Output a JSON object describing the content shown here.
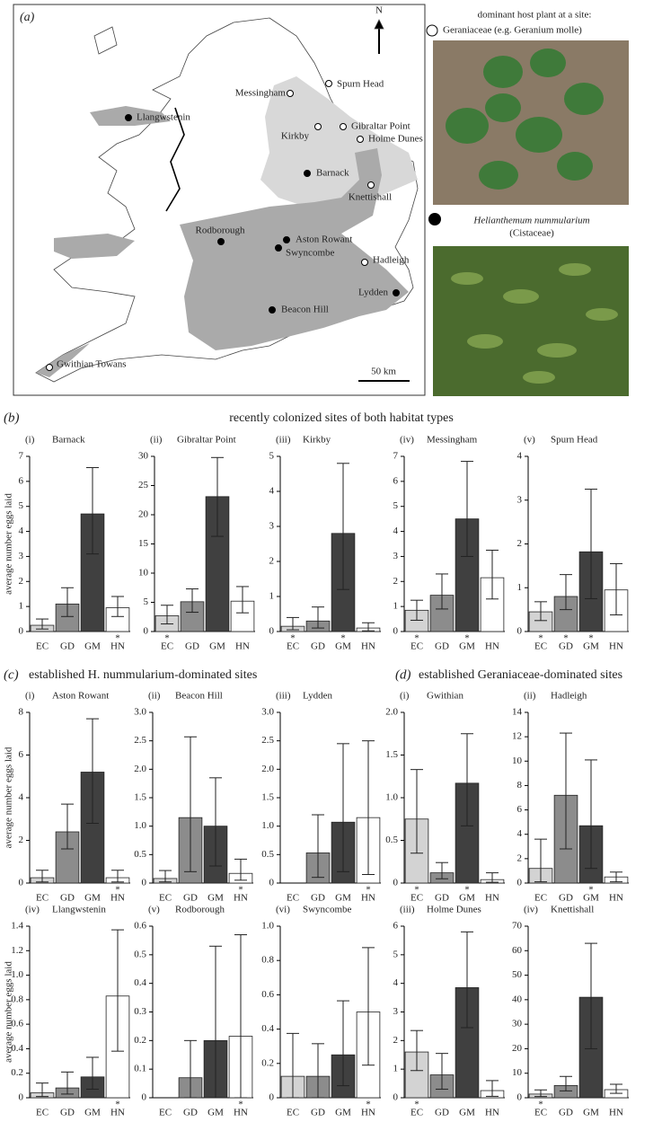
{
  "map": {
    "label": "(a)",
    "north": "N",
    "scale": "50 km",
    "sites": [
      {
        "name": "Spurn Head",
        "fill": "#ffffff"
      },
      {
        "name": "Messingham",
        "fill": "#ffffff"
      },
      {
        "name": "Llangwstenin",
        "fill": "#000000"
      },
      {
        "name": "Kirkby",
        "fill": "#ffffff"
      },
      {
        "name": "Gibraltar Point",
        "fill": "#ffffff"
      },
      {
        "name": "Holme Dunes",
        "fill": "#ffffff"
      },
      {
        "name": "Barnack",
        "fill": "#000000"
      },
      {
        "name": "Knettishall",
        "fill": "#ffffff"
      },
      {
        "name": "Rodborough",
        "fill": "#000000"
      },
      {
        "name": "Aston Rowant",
        "fill": "#000000"
      },
      {
        "name": "Swyncombe",
        "fill": "#000000"
      },
      {
        "name": "Hadleigh",
        "fill": "#ffffff"
      },
      {
        "name": "Lydden",
        "fill": "#000000"
      },
      {
        "name": "Beacon Hill",
        "fill": "#000000"
      },
      {
        "name": "Gwithian Towans",
        "fill": "#ffffff"
      }
    ]
  },
  "legend": {
    "title": "dominant host plant at a site:",
    "geraniaceae": "Geraniaceae (e.g. Geranium molle)",
    "helianthemum": "Helianthemum nummularium",
    "cistaceae": "(Cistaceae)"
  },
  "sections": [
    {
      "label": "(b)",
      "title": "recently colonized sites of both habitat types"
    },
    {
      "label": "(c)",
      "title": "established H. nummularium-dominated sites"
    },
    {
      "label": "(d)",
      "title": "established Geraniaceae-dominated sites"
    }
  ],
  "chart_data": [
    {
      "type": "bar",
      "panel": "(i)",
      "title": "Barnack",
      "ylabel": "average number eggs laid",
      "categories": [
        "EC",
        "GD",
        "GM",
        "HN"
      ],
      "colors": [
        "#d3d3d3",
        "#8c8c8c",
        "#404040",
        "#ffffff"
      ],
      "values": [
        0.25,
        1.1,
        4.7,
        0.95
      ],
      "ci_low": [
        0.1,
        0.6,
        3.1,
        0.6
      ],
      "ci_high": [
        0.5,
        1.75,
        6.55,
        1.4
      ],
      "asterisks": [
        null,
        null,
        null,
        "*"
      ],
      "ylim": [
        0,
        7
      ],
      "yticks": [
        0,
        1,
        2,
        3,
        4,
        5,
        6,
        7
      ]
    },
    {
      "type": "bar",
      "panel": "(ii)",
      "title": "Gibraltar Point",
      "categories": [
        "EC",
        "GD",
        "GM",
        "HN"
      ],
      "colors": [
        "#d3d3d3",
        "#8c8c8c",
        "#404040",
        "#ffffff"
      ],
      "values": [
        2.7,
        5.1,
        23.1,
        5.2
      ],
      "ci_low": [
        1.3,
        3.3,
        16.3,
        3.2
      ],
      "ci_high": [
        4.5,
        7.3,
        29.8,
        7.7
      ],
      "asterisks": [
        "*",
        null,
        null,
        null
      ],
      "ylim": [
        0,
        30
      ],
      "yticks": [
        0,
        5,
        10,
        15,
        20,
        25,
        30
      ]
    },
    {
      "type": "bar",
      "panel": "(iii)",
      "title": "Kirkby",
      "categories": [
        "EC",
        "GD",
        "GM",
        "HN"
      ],
      "colors": [
        "#d3d3d3",
        "#8c8c8c",
        "#404040",
        "#ffffff"
      ],
      "values": [
        0.15,
        0.3,
        2.8,
        0.1
      ],
      "ci_low": [
        0.05,
        0.1,
        1.2,
        0.02
      ],
      "ci_high": [
        0.4,
        0.7,
        4.8,
        0.25
      ],
      "asterisks": [
        "*",
        null,
        "*",
        null
      ],
      "ylim": [
        0,
        5
      ],
      "yticks": [
        0,
        1,
        2,
        3,
        4,
        5
      ]
    },
    {
      "type": "bar",
      "panel": "(iv)",
      "title": "Messingham",
      "categories": [
        "EC",
        "GD",
        "GM",
        "HN"
      ],
      "colors": [
        "#d3d3d3",
        "#8c8c8c",
        "#404040",
        "#ffffff"
      ],
      "values": [
        0.85,
        1.45,
        4.5,
        2.15
      ],
      "ci_low": [
        0.45,
        0.9,
        3.0,
        1.3
      ],
      "ci_high": [
        1.25,
        2.3,
        6.8,
        3.25
      ],
      "asterisks": [
        "*",
        null,
        "*",
        null
      ],
      "ylim": [
        0,
        7
      ],
      "yticks": [
        0,
        1,
        2,
        3,
        4,
        5,
        6,
        7
      ]
    },
    {
      "type": "bar",
      "panel": "(v)",
      "title": "Spurn Head",
      "categories": [
        "EC",
        "GD",
        "GM",
        "HN"
      ],
      "colors": [
        "#d3d3d3",
        "#8c8c8c",
        "#404040",
        "#ffffff"
      ],
      "values": [
        0.45,
        0.8,
        1.82,
        0.95
      ],
      "ci_low": [
        0.25,
        0.5,
        0.75,
        0.38
      ],
      "ci_high": [
        0.68,
        1.3,
        3.25,
        1.55
      ],
      "asterisks": [
        "*",
        "*",
        "*",
        null
      ],
      "ylim": [
        0,
        4
      ],
      "yticks": [
        0,
        1,
        2,
        3,
        4
      ]
    },
    {
      "type": "bar",
      "panel": "(i)",
      "title": "Aston Rowant",
      "ylabel": "average number eggs laid",
      "categories": [
        "EC",
        "GD",
        "GM",
        "HN"
      ],
      "colors": [
        "#d3d3d3",
        "#8c8c8c",
        "#404040",
        "#ffffff"
      ],
      "values": [
        0.25,
        2.4,
        5.2,
        0.25
      ],
      "ci_low": [
        0.05,
        1.6,
        2.8,
        0.05
      ],
      "ci_high": [
        0.6,
        3.7,
        7.7,
        0.6
      ],
      "asterisks": [
        null,
        null,
        null,
        "*"
      ],
      "ylim": [
        0,
        8
      ],
      "yticks": [
        0,
        2,
        4,
        6,
        8
      ]
    },
    {
      "type": "bar",
      "panel": "(ii)",
      "title": "Beacon Hill",
      "categories": [
        "EC",
        "GD",
        "GM",
        "HN"
      ],
      "colors": [
        "#d3d3d3",
        "#8c8c8c",
        "#404040",
        "#ffffff"
      ],
      "values": [
        0.08,
        1.15,
        1.0,
        0.17
      ],
      "ci_low": [
        0.02,
        0.2,
        0.3,
        0.05
      ],
      "ci_high": [
        0.22,
        2.57,
        1.85,
        0.42
      ],
      "asterisks": [
        null,
        null,
        null,
        "*"
      ],
      "ylim": [
        0,
        3
      ],
      "yticks": [
        0,
        0.5,
        {
          "value": 1,
          "label": "1.0"
        },
        1.5,
        {
          "value": 2,
          "label": "2.0"
        },
        2.5,
        {
          "value": 3,
          "label": "3.0"
        }
      ]
    },
    {
      "type": "bar",
      "panel": "(iii)",
      "title": "Lydden",
      "categories": [
        "EC",
        "GD",
        "GM",
        "HN"
      ],
      "colors": [
        "#d3d3d3",
        "#8c8c8c",
        "#404040",
        "#ffffff"
      ],
      "values": [
        0,
        0.53,
        1.07,
        1.15
      ],
      "ci_low": [
        null,
        0.1,
        0.2,
        0.15
      ],
      "ci_high": [
        null,
        1.2,
        2.45,
        2.5
      ],
      "asterisks": [
        null,
        null,
        null,
        "*"
      ],
      "ylim": [
        0,
        3
      ],
      "yticks": [
        0,
        0.5,
        {
          "value": 1,
          "label": "1.0"
        },
        1.5,
        {
          "value": 2,
          "label": "2.0"
        },
        2.5,
        {
          "value": 3,
          "label": "3.0"
        }
      ]
    },
    {
      "type": "bar",
      "panel": "(iv)",
      "title": "Llangwstenin",
      "ylabel": "average number eggs laid",
      "categories": [
        "EC",
        "GD",
        "GM",
        "HN"
      ],
      "colors": [
        "#d3d3d3",
        "#8c8c8c",
        "#404040",
        "#ffffff"
      ],
      "values": [
        0.04,
        0.08,
        0.17,
        0.83
      ],
      "ci_low": [
        0.01,
        0.03,
        0.07,
        0.38
      ],
      "ci_high": [
        0.12,
        0.21,
        0.33,
        1.37
      ],
      "asterisks": [
        null,
        null,
        null,
        "*"
      ],
      "ylim": [
        0,
        1.4
      ],
      "yticks": [
        0,
        0.2,
        0.4,
        0.6,
        0.8,
        {
          "value": 1,
          "label": "1.0"
        },
        1.2,
        1.4
      ]
    },
    {
      "type": "bar",
      "panel": "(v)",
      "title": "Rodborough",
      "categories": [
        "EC",
        "GD",
        "GM",
        "HN"
      ],
      "colors": [
        "#d3d3d3",
        "#8c8c8c",
        "#404040",
        "#ffffff"
      ],
      "values": [
        0,
        0.07,
        0.2,
        0.215
      ],
      "ci_low": [
        null,
        0,
        0,
        0
      ],
      "ci_high": [
        null,
        0.2,
        0.53,
        0.57
      ],
      "asterisks": [
        null,
        null,
        null,
        "*"
      ],
      "ylim": [
        0,
        0.6
      ],
      "yticks": [
        0,
        0.1,
        0.2,
        0.3,
        0.4,
        0.5,
        0.6
      ]
    },
    {
      "type": "bar",
      "panel": "(vi)",
      "title": "Swyncombe",
      "categories": [
        "EC",
        "GD",
        "GM",
        "HN"
      ],
      "colors": [
        "#d3d3d3",
        "#8c8c8c",
        "#404040",
        "#ffffff"
      ],
      "values": [
        0.125,
        0.125,
        0.25,
        0.5
      ],
      "ci_low": [
        0,
        0,
        0.07,
        0.19
      ],
      "ci_high": [
        0.375,
        0.315,
        0.565,
        0.875
      ],
      "asterisks": [
        null,
        null,
        null,
        "*"
      ],
      "ylim": [
        0,
        1
      ],
      "yticks": [
        0,
        0.2,
        0.4,
        0.6,
        0.8,
        {
          "value": 1,
          "label": "1.0"
        }
      ]
    },
    {
      "type": "bar",
      "panel": "(i)",
      "title": "Gwithian",
      "categories": [
        "EC",
        "GD",
        "GM",
        "HN"
      ],
      "colors": [
        "#d3d3d3",
        "#8c8c8c",
        "#404040",
        "#ffffff"
      ],
      "values": [
        0.75,
        0.12,
        1.17,
        0.04
      ],
      "ci_low": [
        0.35,
        0.05,
        0.67,
        0.01
      ],
      "ci_high": [
        1.33,
        0.24,
        1.75,
        0.12
      ],
      "asterisks": [
        "*",
        null,
        "*",
        null
      ],
      "ylim": [
        0,
        2
      ],
      "yticks": [
        0,
        0.5,
        {
          "value": 1,
          "label": "1.0"
        },
        1.5,
        {
          "value": 2,
          "label": "2.0"
        }
      ]
    },
    {
      "type": "bar",
      "panel": "(ii)",
      "title": "Hadleigh",
      "categories": [
        "EC",
        "GD",
        "GM",
        "HN"
      ],
      "colors": [
        "#d3d3d3",
        "#8c8c8c",
        "#404040",
        "#ffffff"
      ],
      "values": [
        1.2,
        7.2,
        4.7,
        0.5
      ],
      "ci_low": [
        0.1,
        2.8,
        1.2,
        0.1
      ],
      "ci_high": [
        3.6,
        12.3,
        10.1,
        0.9
      ],
      "asterisks": [
        null,
        null,
        "*",
        null
      ],
      "ylim": [
        0,
        14
      ],
      "yticks": [
        0,
        2,
        4,
        6,
        8,
        10,
        12,
        14
      ]
    },
    {
      "type": "bar",
      "panel": "(iii)",
      "title": "Holme Dunes",
      "categories": [
        "EC",
        "GD",
        "GM",
        "HN"
      ],
      "colors": [
        "#d3d3d3",
        "#8c8c8c",
        "#404040",
        "#ffffff"
      ],
      "values": [
        1.6,
        0.8,
        3.85,
        0.25
      ],
      "ci_low": [
        0.95,
        0.3,
        2.45,
        0.05
      ],
      "ci_high": [
        2.35,
        1.55,
        5.8,
        0.6
      ],
      "asterisks": [
        "*",
        null,
        null,
        null
      ],
      "ylim": [
        0,
        6
      ],
      "yticks": [
        0,
        1,
        2,
        3,
        4,
        5,
        6
      ]
    },
    {
      "type": "bar",
      "panel": "(iv)",
      "title": "Knettishall",
      "categories": [
        "EC",
        "GD",
        "GM",
        "HN"
      ],
      "colors": [
        "#d3d3d3",
        "#8c8c8c",
        "#404040",
        "#ffffff"
      ],
      "values": [
        1.5,
        5,
        41,
        3.3
      ],
      "ci_low": [
        0.5,
        2.8,
        20,
        1.8
      ],
      "ci_high": [
        3.2,
        8.7,
        63,
        5.5
      ],
      "asterisks": [
        "*",
        null,
        null,
        null
      ],
      "ylim": [
        0,
        70
      ],
      "yticks": [
        0,
        10,
        20,
        30,
        40,
        50,
        60,
        70
      ]
    }
  ]
}
